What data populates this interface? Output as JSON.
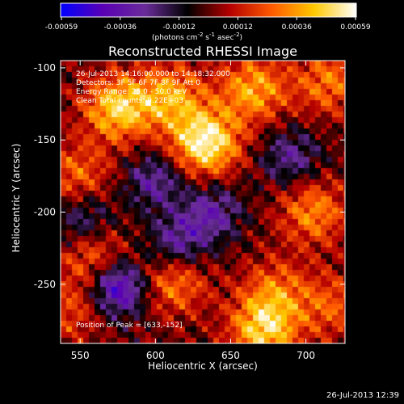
{
  "chart_data": {
    "type": "heatmap",
    "title": "Reconstructed RHESSI Image",
    "xlabel": "Heliocentric X (arcsec)",
    "ylabel": "Heliocentric Y (arcsec)",
    "xlim": [
      537,
      726
    ],
    "ylim": [
      -291,
      -95
    ],
    "x_ticks": [
      550,
      600,
      650,
      700
    ],
    "y_ticks": [
      -100,
      -150,
      -200,
      -250
    ],
    "colorbar": {
      "ticks": [
        "-0.00059",
        "-0.00036",
        "-0.00012",
        "0.00012",
        "0.00036",
        "0.00059"
      ],
      "range": [
        -0.00059,
        0.00059
      ],
      "units_parts": {
        "a": "(photons cm",
        "b": "-2",
        "c": " s",
        "d": "-1",
        "e": " asec",
        "f": "-2",
        "g": ")"
      },
      "colors": [
        "#0000ff",
        "#5a00b4",
        "#6a2c9a",
        "#000000",
        "#b40000",
        "#ff5a00",
        "#ffc800",
        "#ffffff"
      ]
    },
    "annotations": [
      "26-Jul-2013 14:16:00.000 to 14:18:32.000",
      "Detectors: 3F 5F 6F 7F 8F 9F Att 0",
      "Energy Range: 25.0 - 50.0 keV",
      "Clean    Total counts: 9.22E+03"
    ],
    "peak_label": "Position of Peak = [633,-152]",
    "peak": [
      633,
      -152
    ],
    "sources": [
      {
        "x": 633,
        "y": -152,
        "amp": 1.0
      },
      {
        "x": 575,
        "y": -128,
        "amp": 0.8
      },
      {
        "x": 610,
        "y": -120,
        "amp": 0.62
      },
      {
        "x": 665,
        "y": -115,
        "amp": 0.65
      },
      {
        "x": 715,
        "y": -110,
        "amp": 0.5
      },
      {
        "x": 705,
        "y": -200,
        "amp": 0.55
      },
      {
        "x": 548,
        "y": -175,
        "amp": 0.45
      },
      {
        "x": 560,
        "y": -232,
        "amp": 0.5
      },
      {
        "x": 612,
        "y": -248,
        "amp": 0.55
      },
      {
        "x": 672,
        "y": -282,
        "amp": 0.78
      },
      {
        "x": 680,
        "y": -255,
        "amp": 0.45
      },
      {
        "x": 718,
        "y": -265,
        "amp": 0.4
      },
      {
        "x": 545,
        "y": -268,
        "amp": 0.35
      }
    ],
    "negatives": [
      {
        "x": 575,
        "y": -252,
        "amp": 0.9
      },
      {
        "x": 615,
        "y": -222,
        "amp": 0.55
      },
      {
        "x": 638,
        "y": -200,
        "amp": 0.5
      },
      {
        "x": 552,
        "y": -205,
        "amp": 0.45
      },
      {
        "x": 600,
        "y": -178,
        "amp": 0.5
      },
      {
        "x": 690,
        "y": -162,
        "amp": 0.45
      }
    ]
  },
  "timestamp": "26-Jul-2013 12:39"
}
